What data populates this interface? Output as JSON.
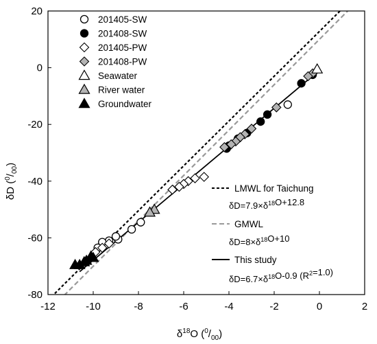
{
  "chart_data": {
    "type": "scatter",
    "title": "",
    "xlabel": "δ18O (0/00)",
    "ylabel": "δD (0/00)",
    "xlim": [
      -12,
      2
    ],
    "ylim": [
      -80,
      20
    ],
    "x_ticks": [
      "-12",
      "-10",
      "-8",
      "-6",
      "-4",
      "-2",
      "0",
      "2"
    ],
    "y_ticks": [
      "20",
      "0",
      "-20",
      "-40",
      "-60",
      "-80"
    ],
    "grid": false,
    "legend_position": "top-left",
    "series": [
      {
        "name": "201405-SW",
        "marker": "circle",
        "fill": "#ffffff",
        "stroke": "#000000",
        "points": [
          [
            -1.4,
            -13
          ],
          [
            -7.9,
            -54.5
          ],
          [
            -8.3,
            -57
          ],
          [
            -8.9,
            -60.5
          ],
          [
            -9.0,
            -59.5
          ],
          [
            -9.3,
            -61
          ],
          [
            -9.6,
            -61.5
          ],
          [
            -9.8,
            -63.5
          ]
        ]
      },
      {
        "name": "201408-SW",
        "marker": "circle",
        "fill": "#000000",
        "stroke": "#000000",
        "points": [
          [
            -0.3,
            -2.5
          ],
          [
            -0.8,
            -5.5
          ],
          [
            -2.3,
            -16.5
          ],
          [
            -2.6,
            -19
          ],
          [
            -3.2,
            -23
          ],
          [
            -3.6,
            -25
          ],
          [
            -4.1,
            -28.5
          ],
          [
            -4.0,
            -27.5
          ]
        ]
      },
      {
        "name": "201405-PW",
        "marker": "diamond",
        "fill": "#ffffff",
        "stroke": "#000000",
        "points": [
          [
            -5.1,
            -38.5
          ],
          [
            -5.5,
            -39
          ],
          [
            -5.8,
            -40
          ],
          [
            -6.0,
            -41
          ],
          [
            -6.2,
            -42
          ],
          [
            -6.5,
            -43
          ],
          [
            -9.3,
            -62
          ],
          [
            -9.6,
            -63.5
          ],
          [
            -9.9,
            -65
          ]
        ]
      },
      {
        "name": "201408-PW",
        "marker": "diamond",
        "fill": "#b3b3b3",
        "stroke": "#000000",
        "points": [
          [
            -0.3,
            -2
          ],
          [
            -0.5,
            -3
          ],
          [
            -1.9,
            -14
          ],
          [
            -3.0,
            -21.5
          ],
          [
            -3.3,
            -23.5
          ],
          [
            -3.5,
            -24.5
          ],
          [
            -3.7,
            -26
          ],
          [
            -3.9,
            -27
          ],
          [
            -4.2,
            -28
          ]
        ]
      },
      {
        "name": "Seawater",
        "marker": "triangle",
        "fill": "#ffffff",
        "stroke": "#000000",
        "points": [
          [
            -0.1,
            -0.5
          ]
        ]
      },
      {
        "name": "River water",
        "marker": "triangle",
        "fill": "#b3b3b3",
        "stroke": "#000000",
        "points": [
          [
            -7.3,
            -50
          ],
          [
            -7.5,
            -51
          ]
        ]
      },
      {
        "name": "Groundwater",
        "marker": "triangle",
        "fill": "#000000",
        "stroke": "#000000",
        "points": [
          [
            -10.1,
            -66.5
          ],
          [
            -10.3,
            -68
          ],
          [
            -10.4,
            -68.5
          ],
          [
            -10.6,
            -69.5
          ],
          [
            -10.8,
            -69.5
          ],
          [
            -10.0,
            -67
          ]
        ]
      }
    ],
    "lines": [
      {
        "name": "LMWL for Taichung",
        "equation": "δD=7.9×δ18O+12.8",
        "slope": 7.9,
        "intercept": 12.8,
        "style": "dashed",
        "color": "#000000"
      },
      {
        "name": "GMWL",
        "equation": "δD=8×δ18O+10",
        "slope": 8,
        "intercept": 10,
        "style": "dashed",
        "color": "#999999"
      },
      {
        "name": "This study",
        "equation": "δD=6.7×δ18O-0.9 (R2=1.0)",
        "slope": 6.7,
        "intercept": -0.9,
        "style": "solid",
        "color": "#000000",
        "x_range": [
          -10.6,
          0
        ]
      }
    ]
  }
}
